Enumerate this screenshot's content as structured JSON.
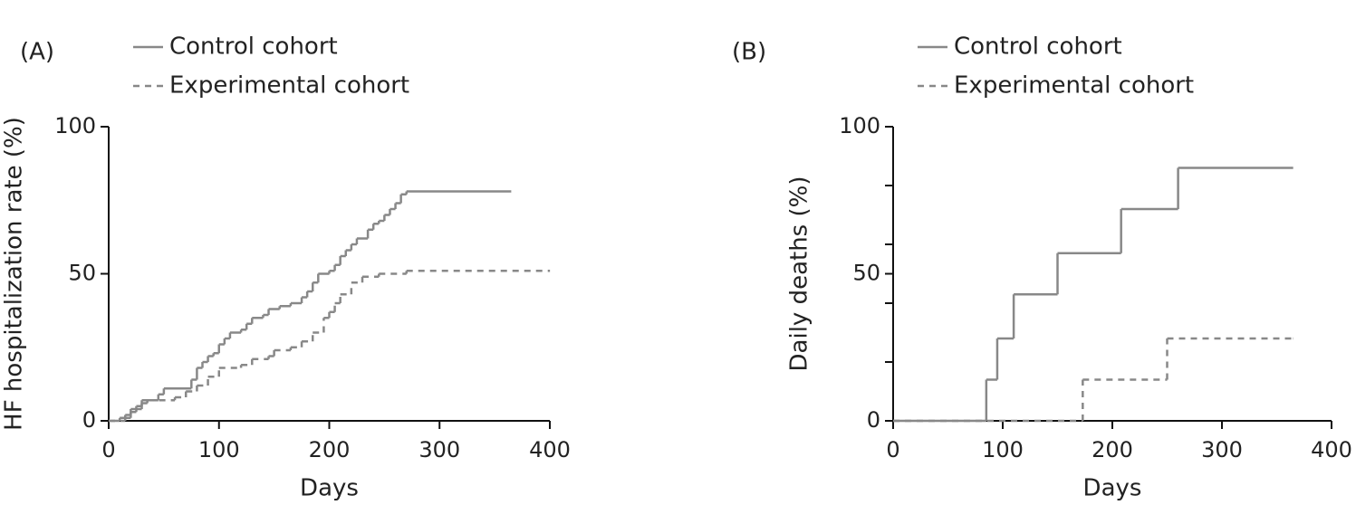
{
  "chart_data": [
    {
      "type": "line",
      "panel_label": "(A)",
      "xlabel": "Days",
      "ylabel": "HF hospitalization rate (%)",
      "xlim": [
        0,
        400
      ],
      "ylim": [
        0,
        100
      ],
      "xticks": [
        0,
        100,
        200,
        300,
        400
      ],
      "yticks": [
        0,
        50,
        100
      ],
      "drawstyle": "steps-post",
      "series": [
        {
          "name": "Control cohort",
          "color": "#888888",
          "linestyle": "solid",
          "x": [
            0,
            10,
            15,
            20,
            25,
            30,
            45,
            50,
            75,
            80,
            85,
            90,
            95,
            100,
            105,
            110,
            120,
            125,
            130,
            140,
            145,
            155,
            165,
            175,
            180,
            185,
            190,
            200,
            205,
            210,
            215,
            220,
            225,
            235,
            240,
            245,
            250,
            255,
            260,
            265,
            270,
            365
          ],
          "values": [
            0,
            1,
            2,
            4,
            5,
            7,
            9,
            11,
            14,
            18,
            20,
            22,
            23,
            26,
            28,
            30,
            31,
            33,
            35,
            36,
            38,
            39,
            40,
            42,
            44,
            47,
            50,
            51,
            53,
            56,
            58,
            60,
            62,
            65,
            67,
            68,
            70,
            72,
            74,
            77,
            78,
            78
          ]
        },
        {
          "name": "Experimental cohort",
          "color": "#888888",
          "linestyle": "dashed",
          "x": [
            0,
            15,
            20,
            25,
            30,
            35,
            60,
            70,
            80,
            90,
            100,
            120,
            130,
            145,
            150,
            165,
            175,
            185,
            195,
            200,
            205,
            210,
            220,
            230,
            245,
            270,
            400
          ],
          "values": [
            0,
            1,
            3,
            4,
            6,
            7,
            8,
            10,
            12,
            15,
            18,
            19,
            21,
            22,
            24,
            25,
            27,
            30,
            35,
            37,
            40,
            43,
            47,
            49,
            50,
            51,
            51
          ]
        }
      ]
    },
    {
      "type": "line",
      "panel_label": "(B)",
      "xlabel": "Days",
      "ylabel": "Daily deaths (%)",
      "xlim": [
        0,
        400
      ],
      "ylim": [
        0,
        100
      ],
      "xticks": [
        0,
        100,
        200,
        300,
        400
      ],
      "yticks": [
        0,
        50,
        100
      ],
      "yminorticks": [
        20,
        40,
        60,
        80
      ],
      "drawstyle": "steps-post",
      "series": [
        {
          "name": "Control cohort",
          "color": "#888888",
          "linestyle": "solid",
          "x": [
            0,
            85,
            95,
            110,
            150,
            208,
            260,
            365
          ],
          "values": [
            0,
            14,
            28,
            43,
            57,
            72,
            86,
            86
          ]
        },
        {
          "name": "Experimental cohort",
          "color": "#888888",
          "linestyle": "dashed",
          "x": [
            0,
            173,
            250,
            365
          ],
          "values": [
            0,
            14,
            28,
            28
          ]
        }
      ]
    }
  ]
}
